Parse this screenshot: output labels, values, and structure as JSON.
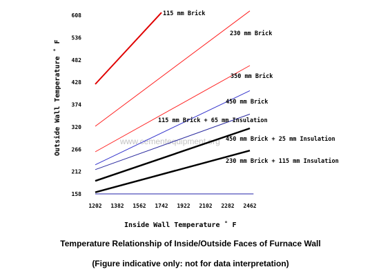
{
  "chart_data": {
    "type": "line",
    "xlabel": "Inside Wall Temperature ˚ F",
    "ylabel": "Outside Wall Temperature ˚ F",
    "x_ticks": [
      "1202",
      "1382",
      "1562",
      "1742",
      "1922",
      "2102",
      "2282",
      "2462"
    ],
    "y_ticks": [
      "158",
      "212",
      "266",
      "320",
      "374",
      "428",
      "482",
      "536",
      "608"
    ],
    "xlim": [
      1202,
      2462
    ],
    "ylim": [
      158,
      608
    ],
    "watermark": "www.cementequipment.org",
    "series": [
      {
        "name": "115 mm Brick",
        "color": "#e00000",
        "width": 2.0,
        "x": [
          1202,
          1742
        ],
        "y": [
          429,
          606
        ]
      },
      {
        "name": "230 mm Brick",
        "color": "#ff2020",
        "width": 1.0,
        "x": [
          1202,
          2462
        ],
        "y": [
          325,
          610
        ]
      },
      {
        "name": "350 mm Brick",
        "color": "#ff2020",
        "width": 1.0,
        "x": [
          1202,
          2462
        ],
        "y": [
          262,
          475
        ]
      },
      {
        "name": "450 mm Brick",
        "color": "#3333cc",
        "width": 1.0,
        "x": [
          1202,
          2462
        ],
        "y": [
          230,
          413
        ]
      },
      {
        "name": "115 mm Brick + 65 mm Insulation",
        "color": "#2a2a9e",
        "width": 1.0,
        "x": [
          1202,
          2462
        ],
        "y": [
          218,
          355
        ]
      },
      {
        "name": "450 mm Brick + 25 mm Insulation",
        "color": "#000000",
        "width": 2.5,
        "x": [
          1202,
          2462
        ],
        "y": [
          190,
          320
        ]
      },
      {
        "name": "230 mm Brick + 115 mm Insulation",
        "color": "#000000",
        "width": 2.5,
        "x": [
          1202,
          2462
        ],
        "y": [
          162,
          265
        ]
      },
      {
        "name": "",
        "color": "#2222aa",
        "width": 1.0,
        "x": [
          1202,
          2492
        ],
        "y": [
          158,
          158
        ]
      }
    ],
    "label_positions_note": "",
    "grid": false
  },
  "caption": {
    "title": "Temperature Relationship of Inside/Outside Faces of Furnace Wall",
    "note": "(Figure indicative only: not for data interpretation)"
  }
}
